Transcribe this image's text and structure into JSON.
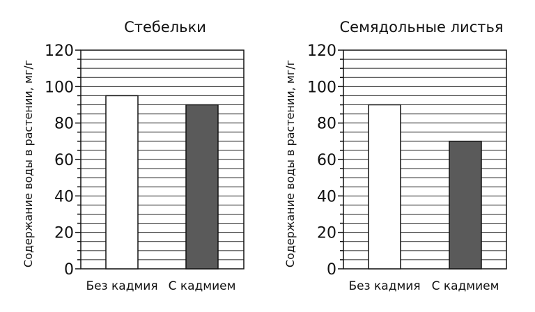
{
  "chart_data": [
    {
      "type": "bar",
      "title": "Стебельки",
      "ylabel": "Содержание воды в растении, мг/г",
      "xlabel": "",
      "categories": [
        "Без кадмия",
        "С кадмием"
      ],
      "values": [
        95,
        90
      ],
      "ylim": [
        0,
        120
      ],
      "yticks": [
        0,
        20,
        40,
        60,
        80,
        100,
        120
      ],
      "grid_step": 5,
      "grid": true,
      "bar_colors": [
        "#ffffff",
        "#5a5a5a"
      ]
    },
    {
      "type": "bar",
      "title": "Семядольные листья",
      "ylabel": "Содержание воды в растении, мг/г",
      "xlabel": "",
      "categories": [
        "Без кадмия",
        "С кадмием"
      ],
      "values": [
        90,
        70
      ],
      "ylim": [
        0,
        120
      ],
      "yticks": [
        0,
        20,
        40,
        60,
        80,
        100,
        120
      ],
      "grid_step": 5,
      "grid": true,
      "bar_colors": [
        "#ffffff",
        "#5a5a5a"
      ]
    }
  ]
}
